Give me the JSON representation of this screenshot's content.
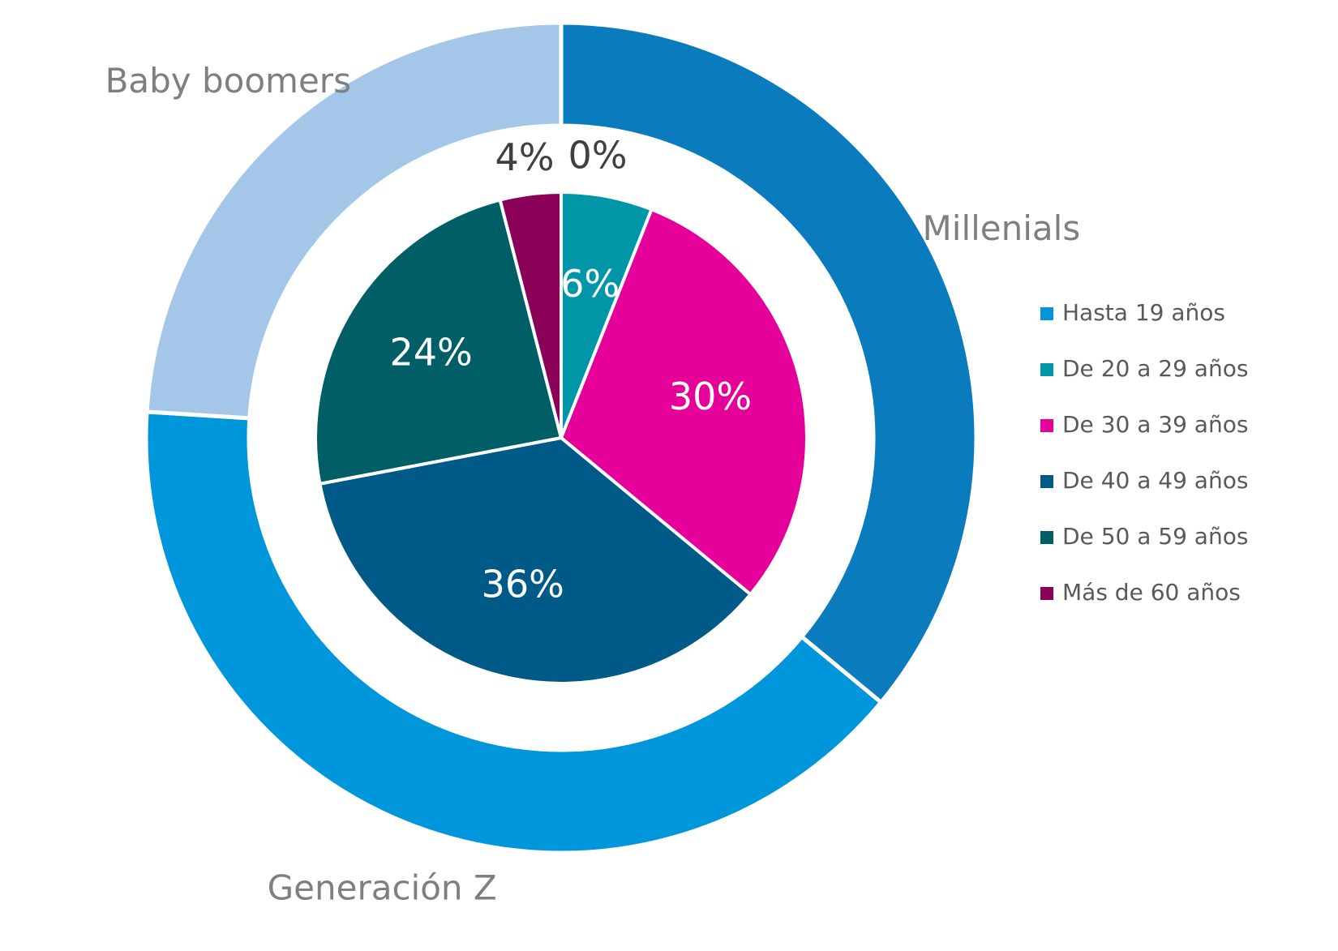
{
  "chart_data": [
    {
      "type": "pie",
      "categories": [
        "Hasta 19 años",
        "De 20 a 29 años",
        "De 30 a 39 años",
        "De 40 a 49 años",
        "De 50 a 59 años",
        "Más de 60 años"
      ],
      "values": [
        0,
        6,
        30,
        36,
        24,
        4
      ],
      "value_labels": [
        "0%",
        "6%",
        "30%",
        "36%",
        "24%",
        "4%"
      ],
      "colors": [
        "#0096db",
        "#0096a8",
        "#e6009a",
        "#005a87",
        "#005f66",
        "#8b0058"
      ],
      "legend": "right"
    },
    {
      "type": "donut",
      "categories": [
        "Millenials",
        "Generación Z",
        "Baby boomers"
      ],
      "values": [
        36,
        40,
        24
      ],
      "colors": [
        "#0a7bbd",
        "#0096db",
        "#a4c6e8"
      ]
    }
  ]
}
